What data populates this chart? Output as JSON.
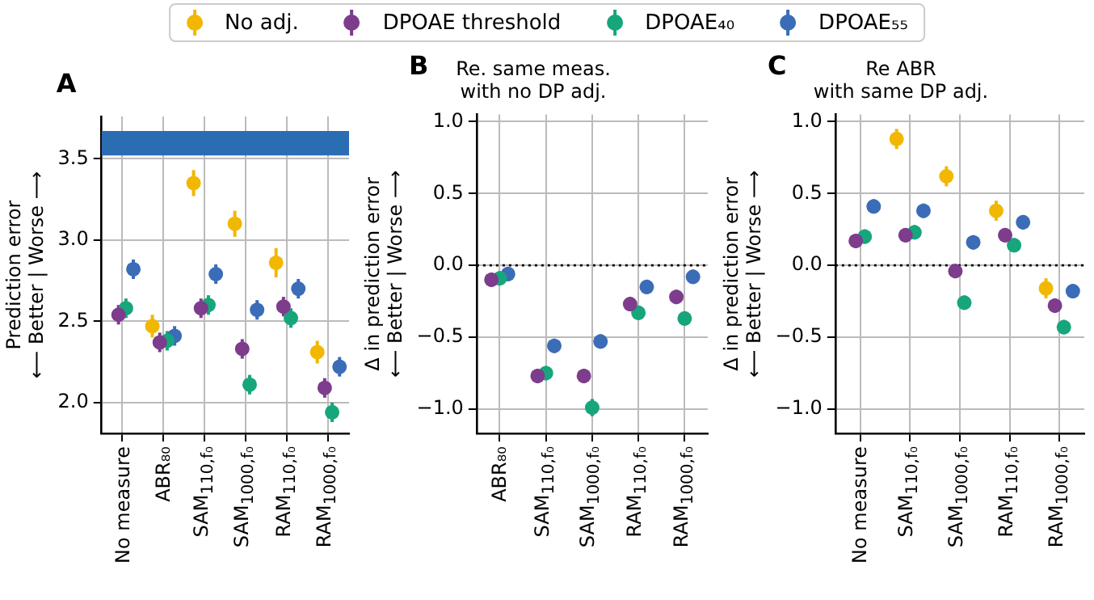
{
  "chart_data": [
    {
      "type": "scatter",
      "annotations": [
        "A"
      ],
      "ylabel": "Prediction error\n⟵ Better | Worse ⟶",
      "categories": [
        "No measure",
        "ABR₈₀",
        "SAM$_{110,f₀}$",
        "SAM$_{1000,f₀}$",
        "RAM$_{110,f₀}$",
        "RAM$_{1000,f₀}$"
      ],
      "ylim": [
        1.81,
        3.76
      ],
      "yticks": [
        {
          "value": 2,
          "label": "2.0"
        },
        {
          "value": 2.5,
          "label": "2.5"
        },
        {
          "value": 3,
          "label": "3.0"
        },
        {
          "value": 3.5,
          "label": "3.5"
        }
      ],
      "grid": true,
      "legend": "top",
      "marker": "circle",
      "bands": [
        {
          "axis": "y",
          "from": 3.52,
          "to": 3.67,
          "color": "#2a6db3"
        }
      ],
      "series": [
        {
          "name": "No adj.",
          "color": "#f2b701",
          "values": [
            null,
            2.47,
            3.35,
            3.1,
            2.86,
            2.31
          ],
          "errors": [
            null,
            0.07,
            0.08,
            0.08,
            0.09,
            0.07
          ]
        },
        {
          "name": "DPOAE threshold",
          "color": "#7d3c8c",
          "values": [
            2.54,
            2.37,
            2.58,
            2.33,
            2.59,
            2.09
          ],
          "errors": [
            0.06,
            0.06,
            0.06,
            0.06,
            0.06,
            0.06
          ]
        },
        {
          "name": "DPOAE₄₀",
          "color": "#17a67c",
          "values": [
            2.58,
            2.38,
            2.6,
            2.11,
            2.52,
            1.94
          ],
          "errors": [
            0.06,
            0.06,
            0.06,
            0.06,
            0.06,
            0.06
          ]
        },
        {
          "name": "DPOAE₅₅",
          "color": "#3b6cb7",
          "values": [
            2.82,
            2.41,
            2.79,
            2.57,
            2.7,
            2.22
          ],
          "errors": [
            0.06,
            0.06,
            0.06,
            0.06,
            0.06,
            0.06
          ]
        }
      ]
    },
    {
      "type": "scatter",
      "annotations": [
        "B"
      ],
      "title": "Re. same meas.\nwith no DP adj.",
      "ylabel": "Δ in prediction error\n⟵ Better | Worse ⟶",
      "categories": [
        "ABR₈₀",
        "SAM$_{110,f₀}$",
        "SAM$_{1000,f₀}$",
        "RAM$_{110,f₀}$",
        "RAM$_{1000,f₀}$"
      ],
      "ylim": [
        -1.17,
        1.05
      ],
      "yticks": [
        {
          "value": -1,
          "label": "−1.0"
        },
        {
          "value": -0.5,
          "label": "−0.5"
        },
        {
          "value": 0,
          "label": "0.0"
        },
        {
          "value": 0.5,
          "label": "0.5"
        },
        {
          "value": 1,
          "label": "1.0"
        }
      ],
      "grid": true,
      "marker": "circle",
      "ref_lines": [
        {
          "axis": "y",
          "value": 0,
          "color": "#000000",
          "line_style": "dotted"
        }
      ],
      "series": [
        {
          "color": "#7d3c8c",
          "values": [
            -0.1,
            -0.77,
            -0.77,
            -0.27,
            -0.22
          ],
          "errors": [
            0.05,
            0.05,
            0.05,
            0.05,
            0.05
          ]
        },
        {
          "color": "#17a67c",
          "values": [
            -0.09,
            -0.75,
            -0.99,
            -0.33,
            -0.37
          ],
          "errors": [
            0.05,
            0.05,
            0.06,
            0.05,
            0.05
          ]
        },
        {
          "color": "#3b6cb7",
          "values": [
            -0.06,
            -0.56,
            -0.53,
            -0.15,
            -0.08
          ],
          "errors": [
            0.05,
            0.05,
            0.05,
            0.05,
            0.05
          ]
        }
      ]
    },
    {
      "type": "scatter",
      "annotations": [
        "C"
      ],
      "title": "Re ABR\nwith same DP adj.",
      "ylabel": "Δ in prediction error\n⟵ Better | Worse ⟶",
      "categories": [
        "No measure",
        "SAM$_{110,f₀}$",
        "SAM$_{1000,f₀}$",
        "RAM$_{110,f₀}$",
        "RAM$_{1000,f₀}$"
      ],
      "ylim": [
        -1.17,
        1.05
      ],
      "yticks": [
        {
          "value": -1,
          "label": "−1.0"
        },
        {
          "value": -0.5,
          "label": "−0.5"
        },
        {
          "value": 0,
          "label": "0.0"
        },
        {
          "value": 0.5,
          "label": "0.5"
        },
        {
          "value": 1,
          "label": "1.0"
        }
      ],
      "grid": true,
      "marker": "circle",
      "ref_lines": [
        {
          "axis": "y",
          "value": 0,
          "color": "#000000",
          "line_style": "dotted"
        }
      ],
      "series": [
        {
          "color": "#f2b701",
          "values": [
            null,
            0.88,
            0.62,
            0.38,
            -0.16
          ],
          "errors": [
            null,
            0.07,
            0.07,
            0.07,
            0.07
          ]
        },
        {
          "color": "#7d3c8c",
          "values": [
            0.17,
            0.21,
            -0.04,
            0.21,
            -0.28
          ],
          "errors": [
            0.05,
            0.05,
            0.05,
            0.05,
            0.05
          ]
        },
        {
          "color": "#17a67c",
          "values": [
            0.2,
            0.23,
            -0.26,
            0.14,
            -0.43
          ],
          "errors": [
            0.05,
            0.05,
            0.05,
            0.05,
            0.05
          ]
        },
        {
          "color": "#3b6cb7",
          "values": [
            0.41,
            0.38,
            0.16,
            0.3,
            -0.18
          ],
          "errors": [
            0.05,
            0.05,
            0.05,
            0.05,
            0.05
          ]
        }
      ]
    }
  ]
}
